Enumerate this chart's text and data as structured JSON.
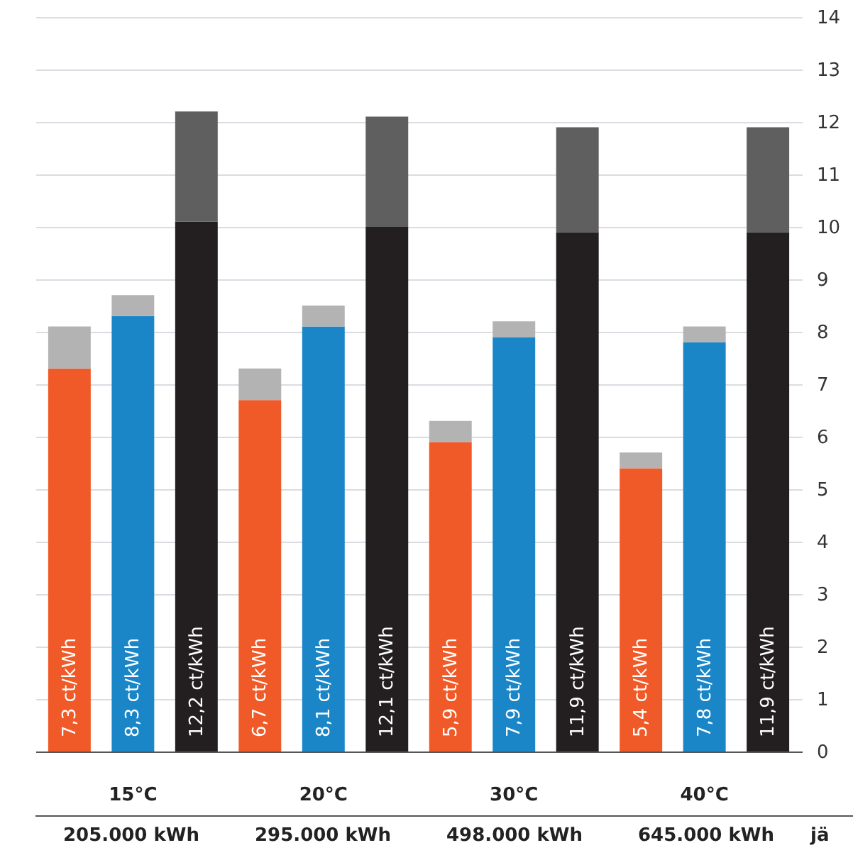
{
  "chart_data": {
    "type": "bar",
    "stacked": true,
    "categories": [
      null,
      "15°C",
      null,
      null,
      "20°C",
      null,
      null,
      "30°C",
      null,
      null,
      "40°C",
      null
    ],
    "series": [
      {
        "colors": [
          "#f05a28",
          "#1a86c7",
          "#231f20",
          "#f05a28",
          "#1a86c7",
          "#231f20",
          "#f05a28",
          "#1a86c7",
          "#231f20",
          "#f05a28",
          "#1a86c7",
          "#231f20"
        ],
        "values": [
          7.3,
          8.3,
          10.1,
          6.7,
          8.1,
          10.0,
          5.9,
          7.9,
          9.9,
          5.4,
          7.8,
          9.9
        ],
        "value_labels": [
          "7,3 ct/kWh",
          "8,3 ct/kWh",
          null,
          "6,7 ct/kWh",
          "8,1 ct/kWh",
          null,
          "5,9 ct/kWh",
          "7,9 ct/kWh",
          null,
          "5,4 ct/kWh",
          "7,8 ct/kWh",
          null
        ]
      },
      {
        "colors": [
          "#b3b3b3",
          "#b3b3b3",
          "#5f5f5f",
          "#b3b3b3",
          "#b3b3b3",
          "#5f5f5f",
          "#b3b3b3",
          "#b3b3b3",
          "#5f5f5f",
          "#b3b3b3",
          "#b3b3b3",
          "#5f5f5f"
        ],
        "values": [
          0.8,
          0.4,
          2.1,
          0.6,
          0.4,
          2.1,
          0.4,
          0.3,
          2.0,
          0.3,
          0.3,
          2.0
        ]
      }
    ],
    "totals": [
      null,
      null,
      "12,2 ct/kWh",
      null,
      null,
      "12,1 ct/kWh",
      null,
      null,
      "11,9 ct/kWh",
      null,
      null,
      "11,9 ct/kWh"
    ],
    "ylim": [
      0,
      14
    ],
    "yticks": [
      0,
      1,
      2,
      3,
      4,
      5,
      6,
      7,
      8,
      9,
      10,
      11,
      12,
      13,
      14
    ],
    "grid": "y",
    "annotations": [
      "205.000 kWh",
      "295.000 kWh",
      "498.000 kWh",
      "645.000 kWh",
      "jä"
    ]
  }
}
